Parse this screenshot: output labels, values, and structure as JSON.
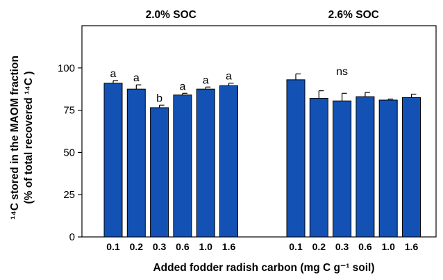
{
  "chart_data": {
    "type": "bar",
    "panels": [
      {
        "title": "2.0% SOC",
        "categories": [
          "0.1",
          "0.2",
          "0.3",
          "0.6",
          "1.0",
          "1.6"
        ],
        "values": [
          91,
          87.5,
          76.5,
          84,
          87.5,
          89.5
        ],
        "errors": [
          1.5,
          2.5,
          1.5,
          1,
          1.2,
          1.5
        ],
        "letters": [
          "a",
          "a",
          "b",
          "a",
          "a",
          "a"
        ]
      },
      {
        "title": "2.6% SOC",
        "categories": [
          "0.1",
          "0.2",
          "0.3",
          "0.6",
          "1.0",
          "1.6"
        ],
        "values": [
          93,
          82,
          80.5,
          83,
          81,
          82.5
        ],
        "errors": [
          3.5,
          4.5,
          4.5,
          2.5,
          0.6,
          2
        ],
        "annotation": "ns"
      }
    ],
    "xlabel": "Added fodder radish carbon (mg C g⁻¹ soil)",
    "ylabel_line1": "¹⁴C stored in the MAOM fraction",
    "ylabel_line2": "(% of total recovered ¹⁴C )",
    "ylim": [
      0,
      125
    ],
    "yticks": [
      "0",
      "25",
      "50",
      "75",
      "100"
    ],
    "bar_color": "#1352b4",
    "grid": false
  }
}
